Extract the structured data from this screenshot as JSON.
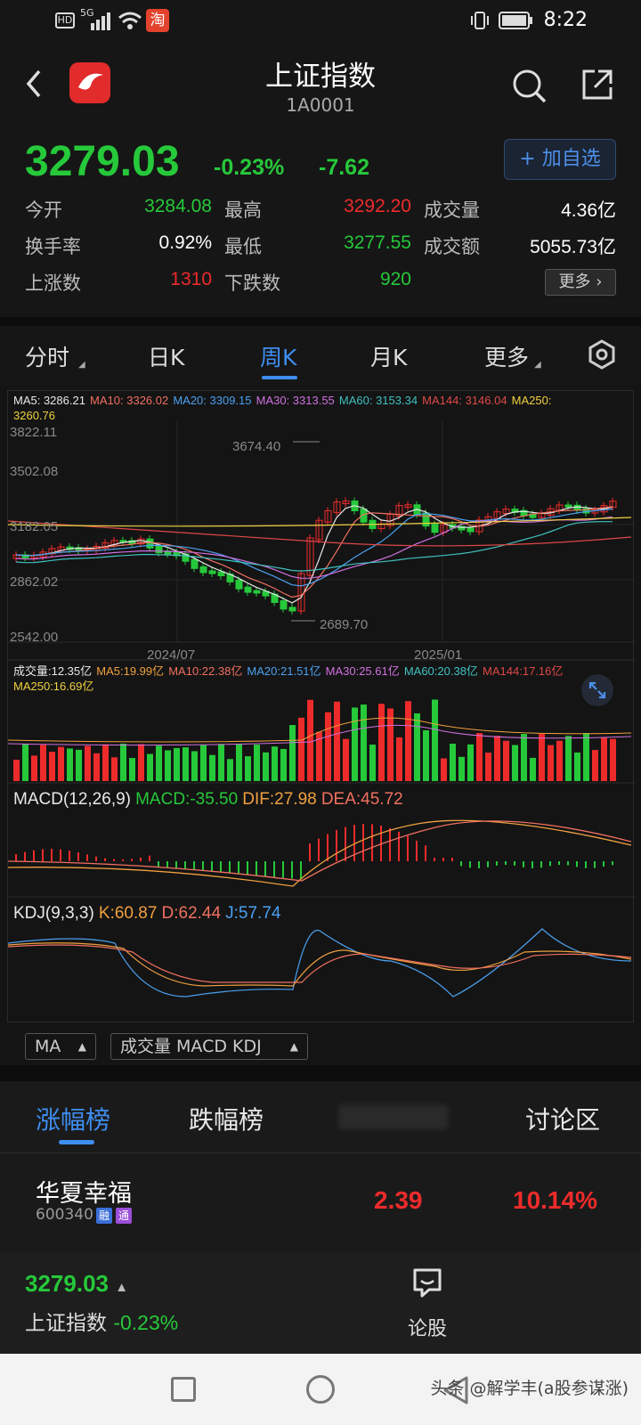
{
  "status": {
    "net": "5G",
    "hd": "HD",
    "time": "8:22",
    "app_badge": "淘"
  },
  "header": {
    "title": "上证指数",
    "code": "1A0001"
  },
  "quote": {
    "price": "3279.03",
    "pct": "-0.23%",
    "change": "-7.62",
    "add_label": "+ 加自选",
    "stats": [
      {
        "label": "今开",
        "value": "3284.08",
        "color": "#26c93a"
      },
      {
        "label": "最高",
        "value": "3292.20",
        "color": "#ee2b2b"
      },
      {
        "label": "成交量",
        "value": "4.36亿",
        "color": "#ffffff"
      },
      {
        "label": "换手率",
        "value": "0.92%",
        "color": "#ffffff"
      },
      {
        "label": "最低",
        "value": "3277.55",
        "color": "#26c93a"
      },
      {
        "label": "成交额",
        "value": "5055.73亿",
        "color": "#ffffff"
      },
      {
        "label": "上涨数",
        "value": "1310",
        "color": "#ee2b2b"
      },
      {
        "label": "下跌数",
        "value": "920",
        "color": "#26c93a"
      }
    ],
    "more_label": "更多"
  },
  "tabs": [
    "分时",
    "日K",
    "周K",
    "月K",
    "更多"
  ],
  "chart": {
    "ma": [
      {
        "text": "MA5: 3286.21",
        "color": "#e8e8e8"
      },
      {
        "text": "MA10: 3326.02",
        "color": "#f07060"
      },
      {
        "text": "MA20: 3309.15",
        "color": "#4aa0f0"
      },
      {
        "text": "MA30: 3313.55",
        "color": "#d070e0"
      },
      {
        "text": "MA60: 3153.34",
        "color": "#40c0c0"
      },
      {
        "text": "MA144: 3146.04",
        "color": "#e04848"
      },
      {
        "text": "MA250:",
        "color": "#f0d040"
      },
      {
        "text": "3260.76",
        "color": "#f0d040"
      }
    ],
    "y_ticks": [
      "3822.11",
      "3502.08",
      "3182.05",
      "2862.02",
      "2542.00"
    ],
    "x_ticks": [
      "2024/07",
      "2025/01"
    ],
    "high_label": "3674.40",
    "low_label": "2689.70",
    "vol_ma": [
      {
        "text": "成交量:12.35亿",
        "color": "#e8e8e8"
      },
      {
        "text": "MA5:19.99亿",
        "color": "#f0a040"
      },
      {
        "text": "MA10:22.38亿",
        "color": "#f07060"
      },
      {
        "text": "MA20:21.51亿",
        "color": "#4aa0f0"
      },
      {
        "text": "MA30:25.61亿",
        "color": "#d070e0"
      },
      {
        "text": "MA60:20.38亿",
        "color": "#40c0c0"
      },
      {
        "text": "MA144:17.16亿",
        "color": "#e04848"
      },
      {
        "text": "MA250:16.69亿",
        "color": "#f0d040"
      }
    ],
    "macd": [
      {
        "text": "MACD(12,26,9)",
        "color": "#e8e8e8"
      },
      {
        "text": "MACD:-35.50",
        "color": "#26c93a"
      },
      {
        "text": "DIF:27.98",
        "color": "#f0a040"
      },
      {
        "text": "DEA:45.72",
        "color": "#f07060"
      }
    ],
    "kdj": [
      {
        "text": "KDJ(9,3,3)",
        "color": "#e8e8e8"
      },
      {
        "text": "K:60.87",
        "color": "#f0a040"
      },
      {
        "text": "D:62.44",
        "color": "#f07060"
      },
      {
        "text": "J:57.74",
        "color": "#4aa0f0"
      }
    ]
  },
  "selectors": {
    "main": "MA",
    "sub": "成交量 MACD KDJ"
  },
  "rank": {
    "tabs": [
      "涨幅榜",
      "跌幅榜",
      "讨论区"
    ],
    "stock": {
      "name": "华夏幸福",
      "code": "600340",
      "badge1": "融",
      "badge2": "通",
      "price": "2.39",
      "pct": "10.14%"
    }
  },
  "bottom": {
    "price": "3279.03",
    "name": "上证指数",
    "pct": "-0.23%",
    "talk": "论股"
  },
  "watermark": "头条 @解学丰(a股参谋涨)"
}
